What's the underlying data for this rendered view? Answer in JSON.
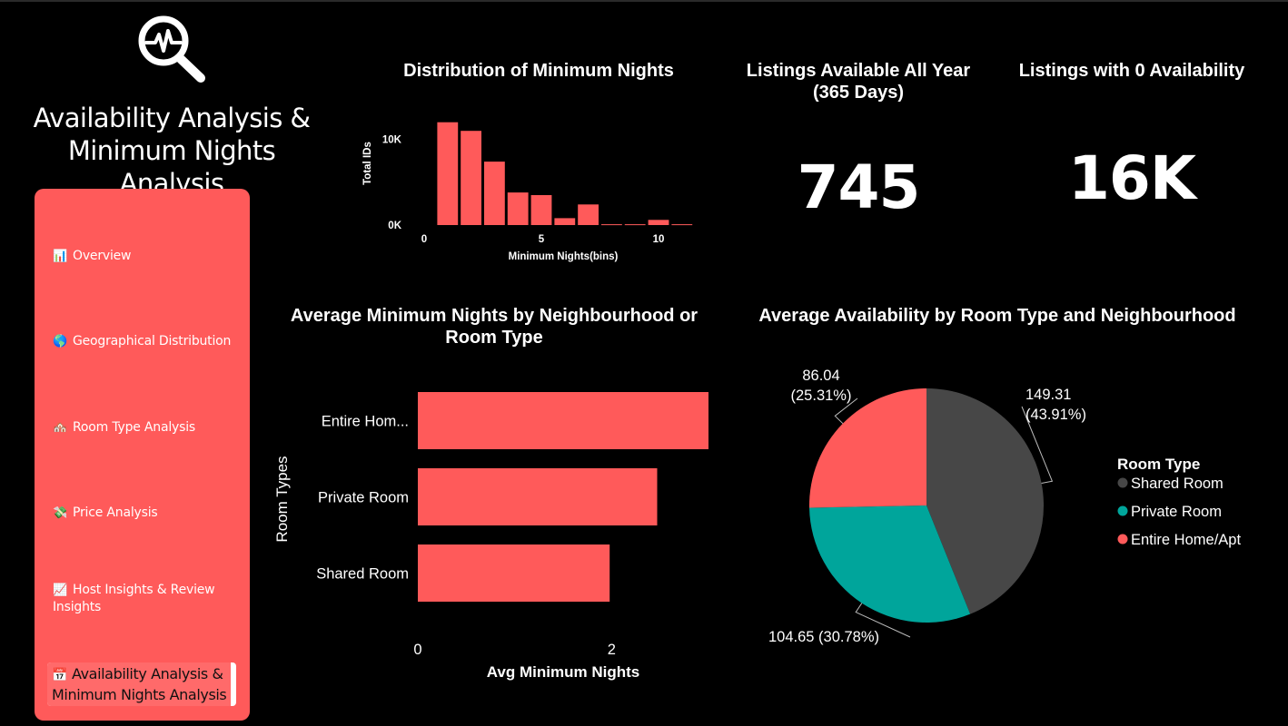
{
  "page": {
    "title": "Availability Analysis & Minimum Nights Analysis"
  },
  "icons": {
    "page_icon": "magnifier-pulse-icon"
  },
  "sidebar": {
    "items": [
      {
        "icon": "📊",
        "label": "Overview"
      },
      {
        "icon": "🌎",
        "label": "Geographical Distribution"
      },
      {
        "icon": "🏘️",
        "label": "Room Type Analysis"
      },
      {
        "icon": "💸",
        "label": "Price Analysis"
      },
      {
        "icon": "📈",
        "label": "Host Insights & Review Insights"
      },
      {
        "icon": "📅",
        "label": "Availability Analysis & Minimum Nights Analysis",
        "active": true
      }
    ]
  },
  "kpis": [
    {
      "title": "Listings Available All Year (365 Days)",
      "value": "745"
    },
    {
      "title": "Listings with 0 Availability",
      "value": "16K"
    }
  ],
  "colors": {
    "accent": "#ff5a5a",
    "shared_room": "#474747",
    "private_room": "#00a59b",
    "entire_home": "#ff5a5a",
    "background": "#000000"
  },
  "chart_data": [
    {
      "type": "bar",
      "title": "Distribution of Minimum Nights",
      "xlabel": "Minimum Nights(bins)",
      "ylabel": "Total IDs",
      "x": [
        1,
        2,
        3,
        4,
        5,
        6,
        7,
        8,
        9,
        10,
        11
      ],
      "values": [
        12000,
        11000,
        7400,
        3800,
        3500,
        800,
        2400,
        100,
        100,
        600,
        100
      ],
      "xlim": [
        0,
        11.6
      ],
      "ylim": [
        0,
        12500
      ],
      "xticks": [
        {
          "v": 0,
          "label": "0"
        },
        {
          "v": 5,
          "label": "5"
        },
        {
          "v": 10,
          "label": "10"
        }
      ],
      "yticks": [
        {
          "v": 0,
          "label": "0K"
        },
        {
          "v": 10000,
          "label": "10K"
        }
      ],
      "grid": false
    },
    {
      "type": "bar",
      "orientation": "horizontal",
      "title": "Average Minimum Nights by Neighbourhood or Room Type",
      "xlabel": "Avg Minimum Nights",
      "ylabel": "Room Types",
      "categories": [
        "Entire Hom...",
        "Private Room",
        "Shared Room"
      ],
      "values": [
        3.0,
        2.47,
        1.98
      ],
      "xlim": [
        0,
        3.0
      ],
      "xticks": [
        {
          "v": 0,
          "label": "0"
        },
        {
          "v": 2,
          "label": "2"
        }
      ],
      "grid": false
    },
    {
      "type": "pie",
      "title": "Average Availability by Room Type and Neighbourhood",
      "legend_title": "Room Type",
      "legend_position": "right",
      "slices": [
        {
          "label": "Shared Room",
          "value": 149.31,
          "percent": "43.91%",
          "text_line1": "149.31",
          "text_line2": "(43.91%)"
        },
        {
          "label": "Private Room",
          "value": 104.65,
          "percent": "30.78%",
          "text_line1": "104.65 (30.78%)",
          "text_line2": ""
        },
        {
          "label": "Entire Home/Apt",
          "value": 86.04,
          "percent": "25.31%",
          "text_line1": "86.04",
          "text_line2": "(25.31%)"
        }
      ]
    }
  ]
}
